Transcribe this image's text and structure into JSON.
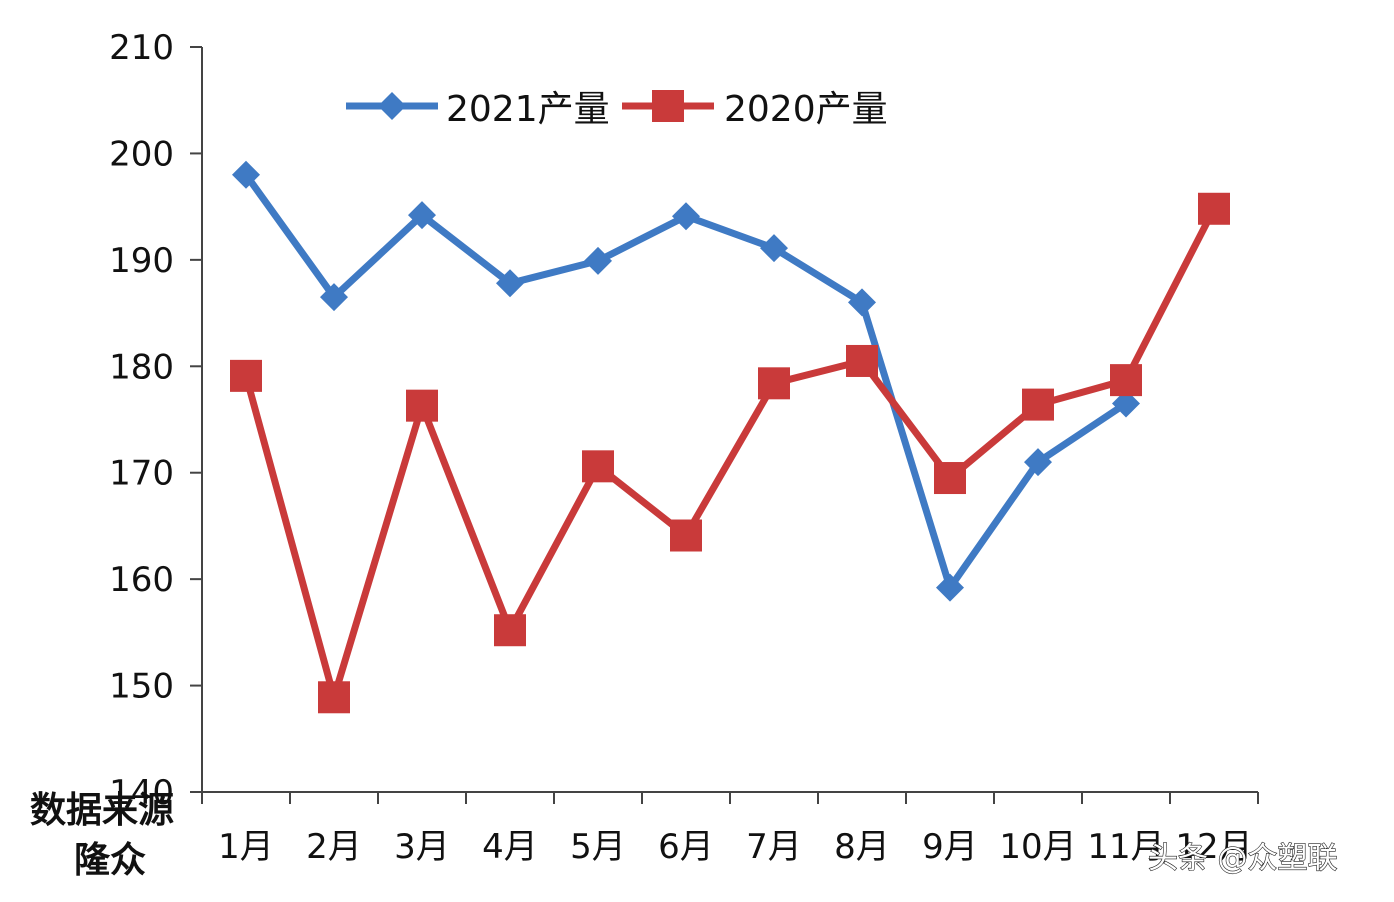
{
  "chart_data": {
    "type": "line",
    "categories": [
      "1月",
      "2月",
      "3月",
      "4月",
      "5月",
      "6月",
      "7月",
      "8月",
      "9月",
      "10月",
      "11月",
      "12月"
    ],
    "series": [
      {
        "name": "2021产量",
        "color": "#3f7ac4",
        "marker": "diamond",
        "values": [
          198,
          186.5,
          194.2,
          187.8,
          189.9,
          194.1,
          191.1,
          186,
          159.2,
          171,
          176.5,
          null
        ]
      },
      {
        "name": "2020产量",
        "color": "#c93a3a",
        "marker": "square",
        "values": [
          179.1,
          148.9,
          176.3,
          155.2,
          170.6,
          164.1,
          178.4,
          180.5,
          169.5,
          176.4,
          178.7,
          194.8
        ]
      }
    ],
    "yticks": [
      "140",
      "150",
      "160",
      "170",
      "180",
      "190",
      "200",
      "210"
    ],
    "ylim": [
      140,
      210
    ],
    "grid": false,
    "legend_position": "top-center",
    "title": "",
    "xlabel": "",
    "ylabel": ""
  },
  "source_note": {
    "line1": "数据来源",
    "line2": "隆众"
  },
  "watermark": "头条 @众塑联"
}
